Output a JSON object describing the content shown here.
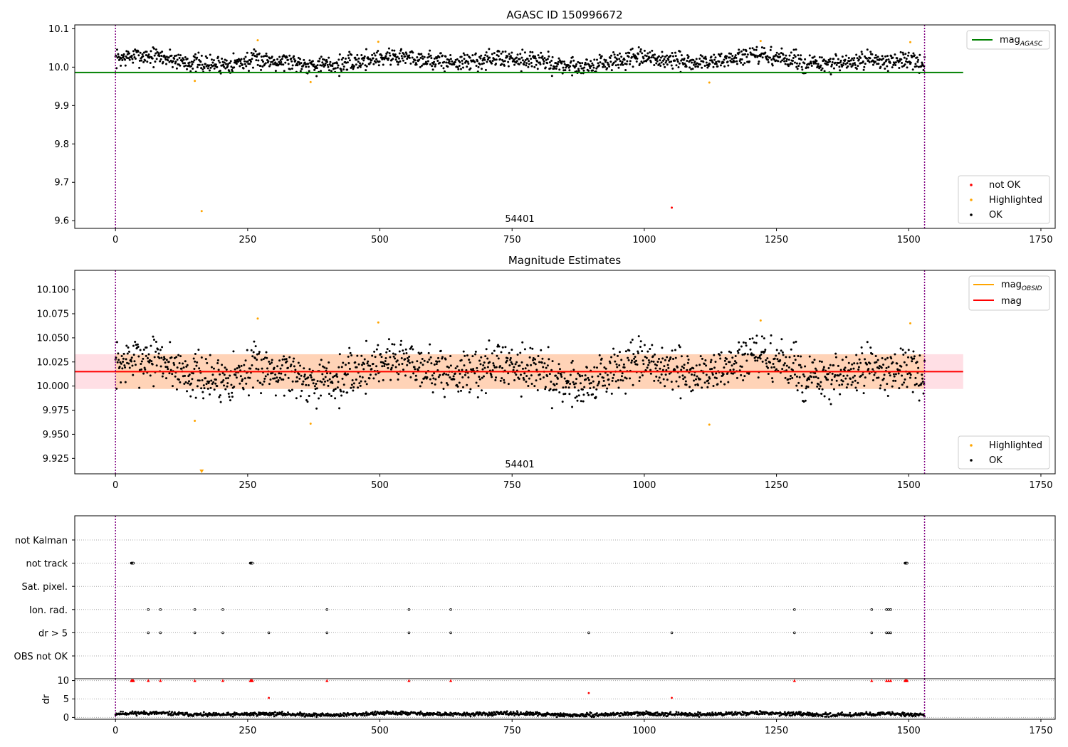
{
  "chart_data": [
    {
      "type": "scatter",
      "title": "AGASC ID 150996672",
      "xlim": [
        -77,
        1777
      ],
      "ylim": [
        9.58,
        10.11
      ],
      "xticks": [
        0,
        250,
        500,
        750,
        1000,
        1250,
        1500,
        1750
      ],
      "yticks": [
        9.6,
        9.7,
        9.8,
        9.9,
        10.0,
        10.1
      ],
      "ytick_labels": [
        "9.6",
        "9.7",
        "9.8",
        "9.9",
        "10.0",
        "10.1"
      ],
      "obsid_label": "54401",
      "obs_bounds": [
        0,
        1530
      ],
      "reference_lines": [
        {
          "name": "mag",
          "subscript": "AGASC",
          "value": 9.986,
          "x_range": [
            -77,
            1603
          ],
          "color": "#008000"
        }
      ],
      "legend_lines": [
        {
          "name": "mag",
          "subscript": "AGASC",
          "color": "#008000"
        }
      ],
      "legend_markers": [
        {
          "name": "not OK",
          "color": "#ff0000"
        },
        {
          "name": "Highlighted",
          "color": "#ffa500"
        },
        {
          "name": "OK",
          "color": "#000000"
        }
      ],
      "series": [
        {
          "name": "OK",
          "color": "#000000",
          "generated": {
            "n": 1530,
            "x_start": 0,
            "x_end": 1530,
            "base": 10.0,
            "offset": 0.016,
            "amp": 0.018,
            "noise": 0.012,
            "clip": [
              9.97,
              10.06
            ]
          }
        },
        {
          "name": "Highlighted",
          "color": "#ffa500",
          "points": [
            [
              150,
              9.964
            ],
            [
              163,
              9.625
            ],
            [
              269,
              10.07
            ],
            [
              369,
              9.961
            ],
            [
              497,
              10.066
            ],
            [
              1123,
              9.96
            ],
            [
              1220,
              10.068
            ],
            [
              1503,
              10.065
            ]
          ]
        },
        {
          "name": "not OK",
          "color": "#ff0000",
          "points": [
            [
              1052,
              9.634
            ]
          ]
        }
      ]
    },
    {
      "type": "scatter",
      "title": "Magnitude Estimates",
      "xlim": [
        -77,
        1777
      ],
      "ylim": [
        9.909,
        10.12
      ],
      "xticks": [
        0,
        250,
        500,
        750,
        1000,
        1250,
        1500,
        1750
      ],
      "yticks": [
        9.925,
        9.95,
        9.975,
        10.0,
        10.025,
        10.05,
        10.075,
        10.1
      ],
      "ytick_labels": [
        "9.925",
        "9.950",
        "9.975",
        "10.000",
        "10.025",
        "10.050",
        "10.075",
        "10.100"
      ],
      "obsid_label": "54401",
      "obs_bounds": [
        0,
        1530
      ],
      "bands": [
        {
          "lo": 9.997,
          "hi": 10.033,
          "x_range": [
            -77,
            1603
          ],
          "color": "#ffc0cb",
          "opacity": 0.5
        },
        {
          "lo": 9.997,
          "hi": 10.033,
          "x_range": [
            0,
            1530
          ],
          "color": "#ffa500",
          "opacity": 0.2
        }
      ],
      "reference_lines": [
        {
          "name": "mag",
          "subscript": "OBSID",
          "value": 10.015,
          "x_range": [
            0,
            1530
          ],
          "color": "#ffa500"
        },
        {
          "name": "mag",
          "subscript": "",
          "value": 10.015,
          "x_range": [
            -77,
            1603
          ],
          "color": "#ff0000"
        }
      ],
      "legend_lines": [
        {
          "name": "mag",
          "subscript": "OBSID",
          "color": "#ffa500"
        },
        {
          "name": "mag",
          "subscript": "",
          "color": "#ff0000"
        }
      ],
      "legend_markers": [
        {
          "name": "Highlighted",
          "color": "#ffa500"
        },
        {
          "name": "OK",
          "color": "#000000"
        }
      ],
      "series": [
        {
          "name": "OK",
          "color": "#000000",
          "generated": {
            "n": 1530,
            "x_start": 0,
            "x_end": 1530,
            "base": 10.0,
            "offset": 0.016,
            "amp": 0.018,
            "noise": 0.012,
            "clip": [
              9.97,
              10.06
            ]
          }
        },
        {
          "name": "Highlighted",
          "color": "#ffa500",
          "points": [
            [
              150,
              9.964
            ],
            [
              269,
              10.07
            ],
            [
              369,
              9.961
            ],
            [
              497,
              10.066
            ],
            [
              1123,
              9.96
            ],
            [
              1220,
              10.068
            ],
            [
              1503,
              10.065
            ]
          ]
        },
        {
          "name": "Highlighted (below axis)",
          "color": "#ffa500",
          "points": [
            [
              163,
              9.911
            ]
          ]
        }
      ]
    },
    {
      "type": "scatter",
      "title": "",
      "xlim": [
        -77,
        1777
      ],
      "ylabels": [
        "not Kalman",
        "not track",
        "Sat. pixel.",
        "Ion. rad.",
        "dr > 5",
        "OBS not OK"
      ],
      "obs_bounds": [
        0,
        1530
      ],
      "flags": {
        "not Kalman": [],
        "not track": [
          30,
          31,
          32,
          33,
          34,
          255,
          256,
          257,
          258,
          259,
          1493,
          1494,
          1495,
          1496,
          1497
        ],
        "Sat. pixel.": [],
        "Ion. rad.": [
          62,
          85,
          150,
          203,
          400,
          555,
          634,
          1284,
          1430,
          1458,
          1462,
          1466
        ],
        "dr > 5": [
          62,
          85,
          150,
          203,
          290,
          400,
          555,
          634,
          895,
          1052,
          1284,
          1430,
          1458,
          1462,
          1466
        ],
        "OBS not OK": []
      }
    },
    {
      "type": "scatter",
      "title": "",
      "ylabel": "dr",
      "xlim": [
        -77,
        1777
      ],
      "ylim": [
        -0.5,
        10.5
      ],
      "xticks": [
        0,
        250,
        500,
        750,
        1000,
        1250,
        1500,
        1750
      ],
      "yticks": [
        0,
        5,
        10
      ],
      "obs_bounds": [
        0,
        1530
      ],
      "series": [
        {
          "name": "dr",
          "color": "#000000",
          "generated": {
            "n": 1530,
            "x_start": 0,
            "x_end": 1530,
            "base": 0.9,
            "amp": 0.4,
            "noise": 0.25,
            "clip": [
              0.1,
              2.0
            ]
          }
        },
        {
          "name": "dr > 5",
          "color": "#ff0000",
          "points": [
            [
              290,
              5.3
            ],
            [
              895,
              6.6
            ],
            [
              1052,
              5.3
            ]
          ]
        },
        {
          "name": "dr ≥ 10",
          "color": "#ff0000",
          "marker": "triangle",
          "points": [
            [
              30,
              10
            ],
            [
              31,
              10
            ],
            [
              32,
              10
            ],
            [
              33,
              10
            ],
            [
              34,
              10
            ],
            [
              62,
              10
            ],
            [
              85,
              10
            ],
            [
              150,
              10
            ],
            [
              203,
              10
            ],
            [
              255,
              10
            ],
            [
              256,
              10
            ],
            [
              257,
              10
            ],
            [
              258,
              10
            ],
            [
              259,
              10
            ],
            [
              400,
              10
            ],
            [
              555,
              10
            ],
            [
              634,
              10
            ],
            [
              1284,
              10
            ],
            [
              1430,
              10
            ],
            [
              1458,
              10
            ],
            [
              1462,
              10
            ],
            [
              1466,
              10
            ],
            [
              1493,
              10
            ],
            [
              1494,
              10
            ],
            [
              1495,
              10
            ],
            [
              1496,
              10
            ],
            [
              1497,
              10
            ]
          ]
        }
      ]
    }
  ]
}
